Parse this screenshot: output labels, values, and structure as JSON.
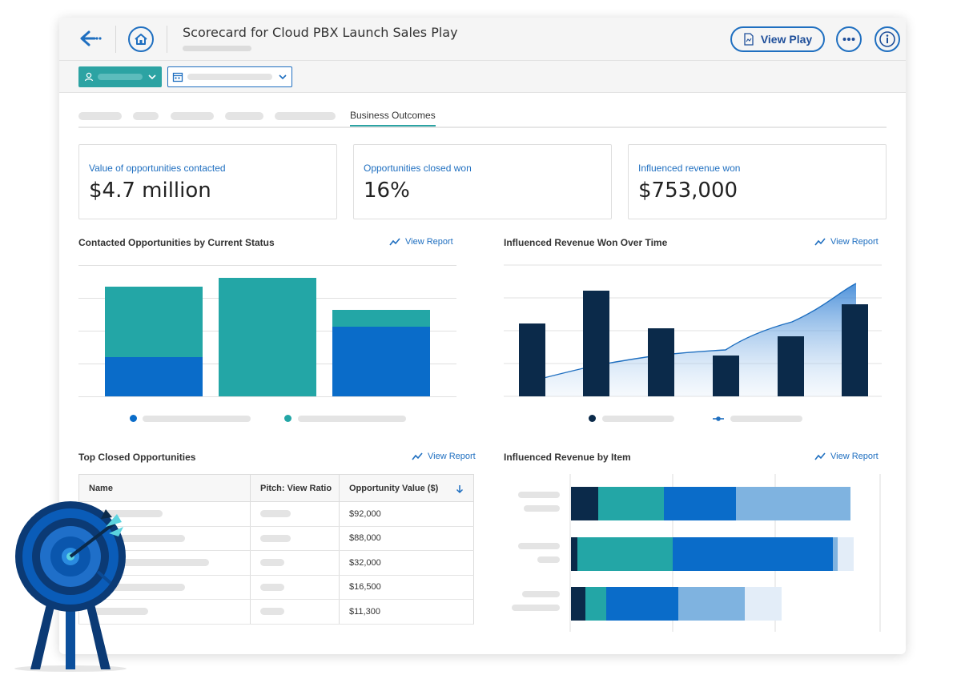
{
  "header": {
    "title": "Scorecard for Cloud PBX Launch Sales Play",
    "view_play_label": "View Play"
  },
  "tabs": {
    "active_label": "Business Outcomes"
  },
  "kpis": [
    {
      "label": "Value of opportunities contacted",
      "value": "$4.7 million"
    },
    {
      "label": "Opportunities closed won",
      "value": "16%"
    },
    {
      "label": "Influenced revenue won",
      "value": "$753,000"
    }
  ],
  "sections": {
    "status_title": "Contacted Opportunities by Current Status",
    "revenue_time_title": "Influenced Revenue Won Over Time",
    "top_closed_title": "Top Closed Opportunities",
    "by_item_title": "Influenced Revenue by Item",
    "view_report_label": "View Report"
  },
  "table": {
    "columns": [
      "Name",
      "Pitch: View Ratio",
      "Opportunity Value ($)"
    ],
    "values": [
      "$92,000",
      "$88,000",
      "$32,000",
      "$16,500",
      "$11,300"
    ]
  },
  "colors": {
    "teal": "#23a6a6",
    "blue": "#0a6cc9",
    "navy": "#0b2a4a",
    "light_blue": "#7fb3e0",
    "pale_blue": "#e3edf8",
    "accent": "#1f6fc0"
  },
  "icons": [
    "back-arrow-icon",
    "home-icon",
    "document-icon",
    "more-icon",
    "info-icon",
    "person-icon",
    "calendar-icon",
    "chevron-down-icon",
    "trend-icon",
    "sort-down-icon",
    "target-icon"
  ]
}
